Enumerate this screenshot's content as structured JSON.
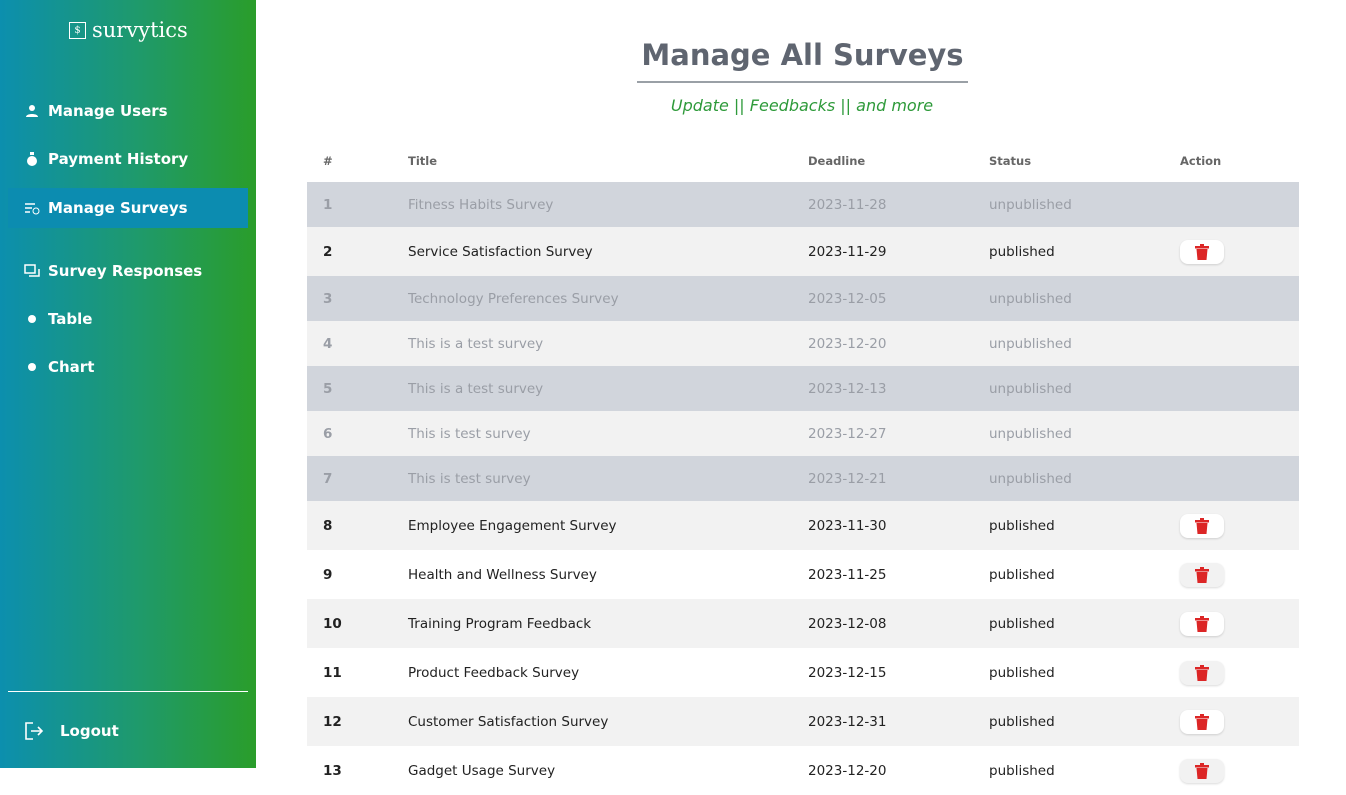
{
  "sidebar": {
    "logo": "survytics",
    "nav": [
      "Manage Users",
      "Payment History",
      "Manage Surveys",
      "Survey Responses",
      "Table",
      "Chart"
    ],
    "logout": "Logout"
  },
  "header": {
    "title": "Manage All Surveys",
    "subtitle": "Update || Feedbacks || and more"
  },
  "table": {
    "columns": [
      "#",
      "Title",
      "Deadline",
      "Status",
      "Action"
    ],
    "rows": [
      [
        "1",
        "Fitness Habits Survey",
        "2023-11-28",
        "unpublished"
      ],
      [
        "2",
        "Service Satisfaction Survey",
        "2023-11-29",
        "published"
      ],
      [
        "3",
        "Technology Preferences Survey",
        "2023-12-05",
        "unpublished"
      ],
      [
        "4",
        "This is a test survey",
        "2023-12-20",
        "unpublished"
      ],
      [
        "5",
        "This is a test survey",
        "2023-12-13",
        "unpublished"
      ],
      [
        "6",
        "This is test survey",
        "2023-12-27",
        "unpublished"
      ],
      [
        "7",
        "This is test survey",
        "2023-12-21",
        "unpublished"
      ],
      [
        "8",
        "Employee Engagement Survey",
        "2023-11-30",
        "published"
      ],
      [
        "9",
        "Health and Wellness Survey",
        "2023-11-25",
        "published"
      ],
      [
        "10",
        "Training Program Feedback",
        "2023-12-08",
        "published"
      ],
      [
        "11",
        "Product Feedback Survey",
        "2023-12-15",
        "published"
      ],
      [
        "12",
        "Customer Satisfaction Survey",
        "2023-12-31",
        "published"
      ],
      [
        "13",
        "Gadget Usage Survey",
        "2023-12-20",
        "published"
      ]
    ]
  }
}
